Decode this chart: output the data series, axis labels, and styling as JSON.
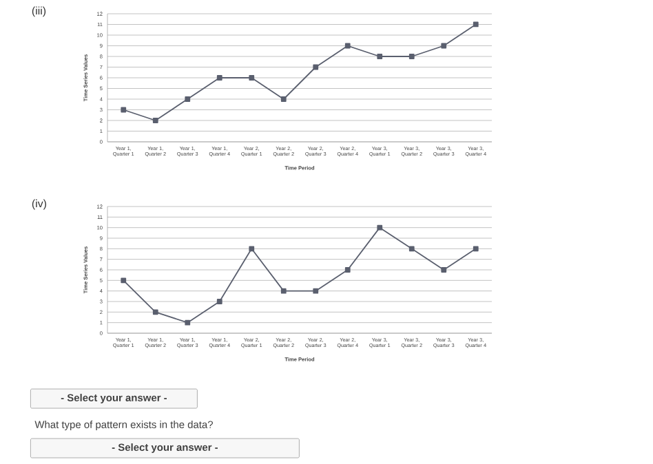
{
  "chart_data": [
    {
      "type": "line",
      "title": "(iii)",
      "xlabel": "Time Period",
      "ylabel": "Time Series Values",
      "categories": [
        "Year 1, Quarter 1",
        "Year 1, Quarter 2",
        "Year 1, Quarter 3",
        "Year 1, Quarter 4",
        "Year 2, Quarter 1",
        "Year 2, Quarter 2",
        "Year 2, Quarter 3",
        "Year 2, Quarter 4",
        "Year 3, Quarter 1",
        "Year 3, Quarter 2",
        "Year 3, Quarter 3",
        "Year 3, Quarter 4"
      ],
      "series": [
        {
          "color": "#5a5f6e",
          "values": [
            3,
            2,
            4,
            6,
            6,
            4,
            7,
            9,
            8,
            8,
            9,
            11
          ]
        }
      ],
      "ylim": [
        0,
        12
      ],
      "yticks": [
        0,
        1,
        2,
        3,
        4,
        5,
        6,
        7,
        8,
        9,
        10,
        11,
        12
      ],
      "grid": "y",
      "marker": "square",
      "line_style": "solid"
    },
    {
      "type": "line",
      "title": "(iv)",
      "xlabel": "Time Period",
      "ylabel": "Time Series Values",
      "categories": [
        "Year 1, Quarter 1",
        "Year 1, Quarter 2",
        "Year 1, Quarter 3",
        "Year 1, Quarter 4",
        "Year 2, Quarter 1",
        "Year 2, Quarter 2",
        "Year 2, Quarter 3",
        "Year 2, Quarter 4",
        "Year 3, Quarter 1",
        "Year 3, Quarter 2",
        "Year 3, Quarter 3",
        "Year 3, Quarter 4"
      ],
      "series": [
        {
          "color": "#5a5f6e",
          "values": [
            5,
            2,
            1,
            3,
            8,
            4,
            4,
            6,
            10,
            8,
            6,
            8
          ]
        }
      ],
      "ylim": [
        0,
        12
      ],
      "yticks": [
        0,
        1,
        2,
        3,
        4,
        5,
        6,
        7,
        8,
        9,
        10,
        11,
        12
      ],
      "grid": "y",
      "marker": "square",
      "line_style": "solid",
      "annotations": [
        "- Select your answer -",
        "What type of pattern exists in the data?",
        "- Select your answer -"
      ]
    }
  ]
}
